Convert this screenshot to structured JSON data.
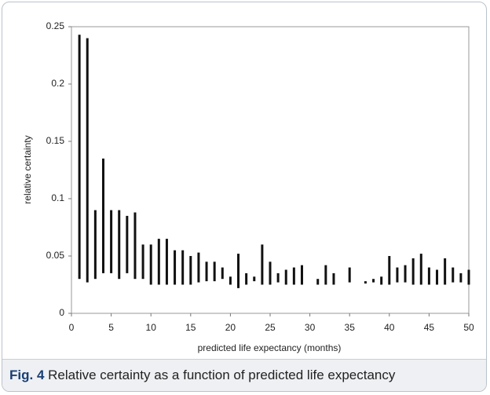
{
  "chart_data": {
    "type": "range",
    "xlabel": "predicted life expectancy (months)",
    "ylabel": "relative certainty",
    "x": [
      1,
      2,
      3,
      4,
      5,
      6,
      7,
      8,
      9,
      10,
      11,
      12,
      13,
      14,
      15,
      16,
      17,
      18,
      19,
      20,
      21,
      22,
      23,
      24,
      25,
      26,
      27,
      28,
      29,
      31,
      32,
      33,
      35,
      37,
      38,
      39,
      40,
      41,
      42,
      43,
      44,
      45,
      46,
      47,
      48,
      49,
      50
    ],
    "low": [
      0.03,
      0.027,
      0.03,
      0.035,
      0.035,
      0.03,
      0.035,
      0.03,
      0.03,
      0.025,
      0.025,
      0.025,
      0.025,
      0.025,
      0.025,
      0.027,
      0.028,
      0.028,
      0.03,
      0.025,
      0.022,
      0.025,
      0.028,
      0.025,
      0.025,
      0.027,
      0.025,
      0.025,
      0.025,
      0.025,
      0.025,
      0.025,
      0.027,
      0.026,
      0.027,
      0.025,
      0.025,
      0.027,
      0.027,
      0.025,
      0.025,
      0.025,
      0.025,
      0.025,
      0.027,
      0.027,
      0.025
    ],
    "high": [
      0.243,
      0.24,
      0.09,
      0.135,
      0.09,
      0.09,
      0.085,
      0.088,
      0.06,
      0.06,
      0.065,
      0.065,
      0.055,
      0.055,
      0.05,
      0.053,
      0.045,
      0.045,
      0.04,
      0.032,
      0.052,
      0.035,
      0.032,
      0.06,
      0.045,
      0.035,
      0.038,
      0.04,
      0.042,
      0.03,
      0.042,
      0.035,
      0.04,
      0.028,
      0.03,
      0.032,
      0.05,
      0.04,
      0.042,
      0.048,
      0.052,
      0.04,
      0.038,
      0.048,
      0.04,
      0.035,
      0.038
    ],
    "color": "#111111",
    "xlim": [
      0,
      50
    ],
    "xticks": [
      0,
      5,
      10,
      15,
      20,
      25,
      30,
      35,
      40,
      45,
      50
    ],
    "ylim": [
      0,
      0.25
    ],
    "yticks": [
      0,
      0.05,
      0.1,
      0.15,
      0.2,
      0.25
    ]
  },
  "caption": {
    "label": "Fig. 4",
    "text": "Relative certainty as a function of predicted life expectancy"
  }
}
